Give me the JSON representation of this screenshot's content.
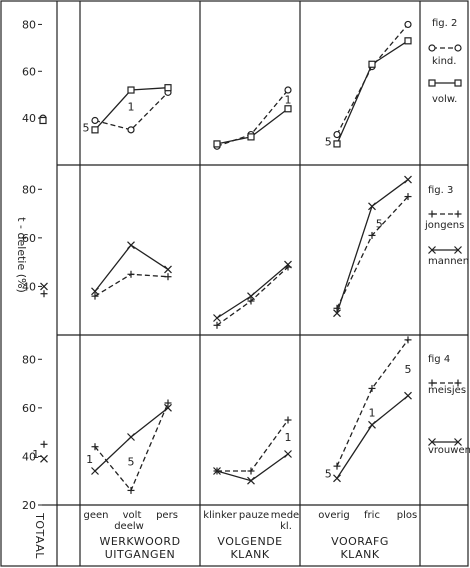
{
  "chart_data": [
    {
      "type": "line",
      "legend_title": "fig. 2",
      "series": [
        {
          "name": "kind.",
          "marker": "circle",
          "style": "dashed",
          "werkwoord": [
            39,
            35,
            51
          ],
          "volgende": [
            28,
            33,
            52
          ],
          "voorafg": [
            33,
            62,
            80
          ],
          "totaal": 40
        },
        {
          "name": "volw.",
          "marker": "square",
          "style": "solid",
          "werkwoord": [
            35,
            52,
            53
          ],
          "volgende": [
            29,
            32,
            44
          ],
          "voorafg": [
            29,
            63,
            73
          ],
          "totaal": 39
        }
      ],
      "annotations": [
        {
          "text": "5",
          "group": "werkwoord",
          "x": -0.25,
          "y": 36
        },
        {
          "text": "1",
          "group": "werkwoord",
          "x": 1.0,
          "y": 45
        },
        {
          "text": "1",
          "group": "volgende",
          "x": 2.0,
          "y": 48
        },
        {
          "text": "5",
          "group": "voorafg",
          "x": -0.25,
          "y": 30
        }
      ]
    },
    {
      "type": "line",
      "legend_title": "fig. 3",
      "series": [
        {
          "name": "jongens",
          "marker": "plus",
          "style": "dashed",
          "werkwoord": [
            36,
            45,
            44
          ],
          "volgende": [
            24,
            34,
            48
          ],
          "voorafg": [
            31,
            61,
            77
          ],
          "totaal": 37
        },
        {
          "name": "mannen",
          "marker": "cross",
          "style": "solid",
          "werkwoord": [
            38,
            57,
            47
          ],
          "volgende": [
            27,
            36,
            49
          ],
          "voorafg": [
            29,
            73,
            84
          ],
          "totaal": 40
        }
      ],
      "annotations": [
        {
          "text": "5",
          "group": "voorafg",
          "x": 1.2,
          "y": 66
        }
      ]
    },
    {
      "type": "line",
      "legend_title": "fig 4",
      "series": [
        {
          "name": "meisjes",
          "marker": "plus",
          "style": "dashed",
          "werkwoord": [
            44,
            26,
            62
          ],
          "volgende": [
            34,
            34,
            55
          ],
          "voorafg": [
            36,
            68,
            88
          ],
          "totaal": 45
        },
        {
          "name": "vrouwen",
          "marker": "cross",
          "style": "solid",
          "werkwoord": [
            34,
            48,
            60
          ],
          "volgende": [
            34,
            30,
            41
          ],
          "voorafg": [
            31,
            53,
            65
          ],
          "totaal": 39
        }
      ],
      "annotations": [
        {
          "text": "1",
          "group": "werkwoord",
          "x": -0.15,
          "y": 39
        },
        {
          "text": "5",
          "group": "werkwoord",
          "x": 1.0,
          "y": 38
        },
        {
          "text": "1",
          "group": "volgende",
          "x": 2.0,
          "y": 48
        },
        {
          "text": "1",
          "group": "voorafg",
          "x": 1.0,
          "y": 58
        },
        {
          "text": "5",
          "group": "voorafg",
          "x": 2.0,
          "y": 76
        },
        {
          "text": "5",
          "group": "voorafg",
          "x": -0.25,
          "y": 33
        },
        {
          "text": "1",
          "group": "totaal",
          "x": -0.6,
          "y": 41
        }
      ]
    }
  ],
  "axes": {
    "ylabel": "t - deletie (%)",
    "ylim": [
      20,
      90
    ],
    "yticks": [
      20,
      40,
      60,
      80
    ]
  },
  "groups": {
    "totaal": {
      "label": "TOTAAL"
    },
    "werkwoord": {
      "label_line1": "WERKWOORD",
      "label_line2": "UITGANGEN",
      "categories": [
        "geen",
        "volt",
        "pers"
      ],
      "volt_sub": "deelw"
    },
    "volgende": {
      "label_line1": "VOLGENDE",
      "label_line2": "KLANK",
      "categories": [
        "klinker",
        "pauze",
        "mede"
      ],
      "mede_sub": "kl."
    },
    "voorafg": {
      "label_line1": "VOORAFG",
      "label_line2": "KLANK",
      "categories": [
        "overig",
        "fric",
        "plos"
      ]
    }
  }
}
